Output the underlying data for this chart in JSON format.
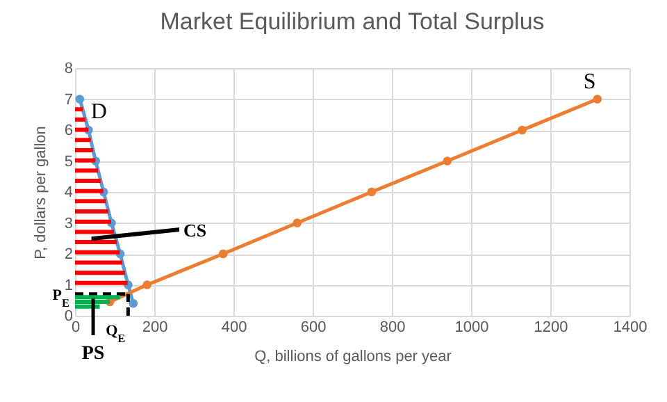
{
  "chart_data": {
    "type": "line",
    "title": "Market Equilibrium and Total Surplus",
    "xlabel": "Q, billions of gallons per year",
    "ylabel": "P, dollars per gallon",
    "series": [
      {
        "x": [
          12,
          34,
          52,
          72,
          92,
          114,
          134,
          147
        ],
        "values": [
          7,
          6,
          5,
          4,
          3,
          2,
          1,
          0.4
        ],
        "color": "#5b9bd5"
      },
      {
        "x": [
          88,
          182,
          374,
          561,
          749,
          940,
          1129,
          1319
        ],
        "values": [
          0.45,
          1,
          2,
          3,
          4,
          5,
          6,
          7
        ],
        "color": "#ed7d31"
      }
    ],
    "xlim": [
      0,
      1400
    ],
    "xticks": [
      0,
      200,
      400,
      600,
      800,
      1000,
      1200,
      1400
    ],
    "ylim": [
      0,
      8
    ],
    "yticks": [
      0,
      1,
      2,
      3,
      4,
      5,
      6,
      7,
      8
    ],
    "ref_lines": [
      {
        "axis": "y",
        "value": 0.7,
        "label": "P$_{E}$",
        "color": "#000000",
        "line_style": "dashed"
      },
      {
        "axis": "x",
        "value": 134,
        "label": "Q$_{E}$",
        "color": "#000000",
        "line_style": "dashed"
      }
    ],
    "annotations": [
      {
        "text": "D",
        "x": 40,
        "y": 6.6
      },
      "S",
      "CS",
      "PS"
    ],
    "grid": true,
    "marker": "circle",
    "line_style": "solid"
  }
}
